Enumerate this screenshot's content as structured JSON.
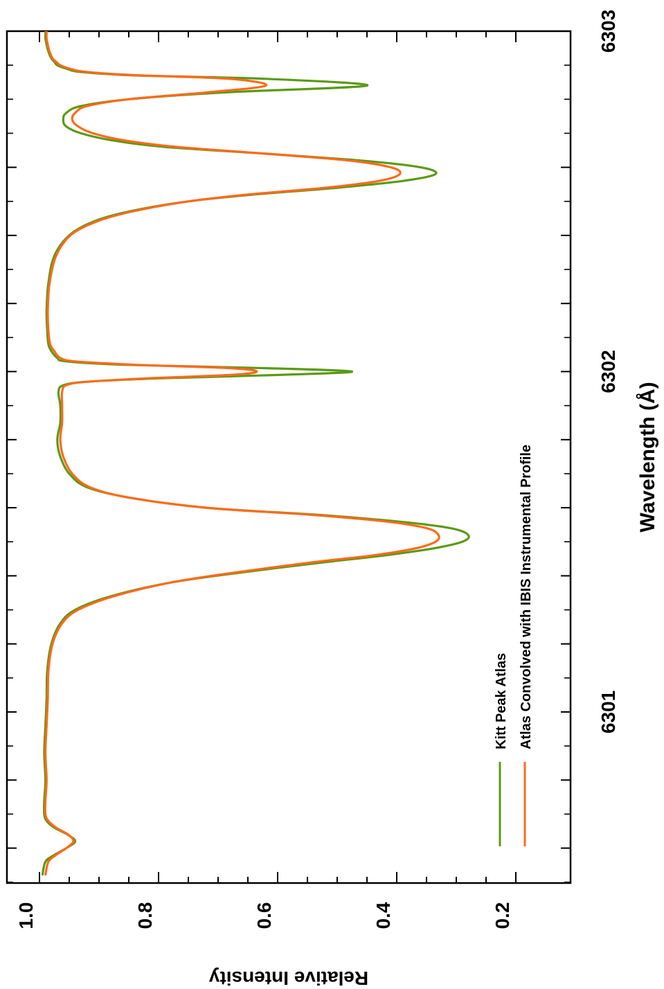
{
  "chart_data": {
    "type": "line",
    "orientation": "rotated 90 degrees clockwise (wavelength runs top-to-bottom on screen as 6303 at top, 6301 at bottom)",
    "xlabel": "Wavelength (Å)",
    "ylabel": "Relative Intensity",
    "xlim": [
      6300.5,
      6303.0
    ],
    "ylim": [
      0.1,
      1.01
    ],
    "x_major_ticks": [
      6301,
      6302,
      6303
    ],
    "x_tick_labels": [
      "6301",
      "6302",
      "6303"
    ],
    "y_ticks": [
      1.0,
      0.8,
      0.6,
      0.4,
      0.2
    ],
    "y_tick_labels": [
      "1.0",
      "0.8",
      "0.6",
      "0.4",
      "0.2"
    ],
    "legend": {
      "placement": "bottom-left"
    },
    "series": [
      {
        "name": "Kitt Peak Atlas",
        "color": "#5a9a14",
        "x": [
          6300.52,
          6300.56,
          6300.58,
          6300.6,
          6300.62,
          6300.64,
          6300.66,
          6300.68,
          6300.7,
          6300.74,
          6300.8,
          6300.88,
          6300.96,
          6301.04,
          6301.12,
          6301.2,
          6301.26,
          6301.3,
          6301.34,
          6301.38,
          6301.41,
          6301.44,
          6301.46,
          6301.48,
          6301.5,
          6301.52,
          6301.54,
          6301.56,
          6301.58,
          6301.6,
          6301.63,
          6301.66,
          6301.7,
          6301.75,
          6301.8,
          6301.85,
          6301.9,
          6301.94,
          6301.96,
          6301.97,
          6301.98,
          6301.99,
          6302.0,
          6302.01,
          6302.02,
          6302.03,
          6302.04,
          6302.06,
          6302.08,
          6302.12,
          6302.18,
          6302.26,
          6302.34,
          6302.4,
          6302.44,
          6302.47,
          6302.5,
          6302.52,
          6302.54,
          6302.56,
          6302.58,
          6302.6,
          6302.62,
          6302.64,
          6302.66,
          6302.68,
          6302.7,
          6302.72,
          6302.74,
          6302.76,
          6302.78,
          6302.8,
          6302.82,
          6302.84,
          6302.86,
          6302.87,
          6302.88,
          6302.89,
          6302.9,
          6302.91,
          6302.92,
          6302.94,
          6302.96,
          6302.98,
          6303.0
        ],
        "y": [
          0.995,
          0.99,
          0.975,
          0.955,
          0.94,
          0.953,
          0.975,
          0.988,
          0.992,
          0.992,
          0.99,
          0.992,
          0.99,
          0.988,
          0.987,
          0.98,
          0.965,
          0.94,
          0.88,
          0.78,
          0.66,
          0.52,
          0.42,
          0.34,
          0.29,
          0.28,
          0.31,
          0.4,
          0.54,
          0.72,
          0.85,
          0.92,
          0.95,
          0.965,
          0.97,
          0.965,
          0.965,
          0.968,
          0.96,
          0.92,
          0.8,
          0.6,
          0.475,
          0.62,
          0.86,
          0.955,
          0.97,
          0.98,
          0.985,
          0.987,
          0.988,
          0.985,
          0.975,
          0.95,
          0.91,
          0.85,
          0.75,
          0.64,
          0.5,
          0.39,
          0.335,
          0.36,
          0.46,
          0.62,
          0.79,
          0.88,
          0.93,
          0.955,
          0.96,
          0.955,
          0.93,
          0.85,
          0.69,
          0.45,
          0.62,
          0.84,
          0.93,
          0.955,
          0.97,
          0.975,
          0.98,
          0.985,
          0.988,
          0.99,
          0.99
        ]
      },
      {
        "name": "Atlas Convolved with IBIS Instrumental Profile",
        "color": "#ff6a1a",
        "x": [
          6300.52,
          6300.56,
          6300.58,
          6300.6,
          6300.62,
          6300.64,
          6300.66,
          6300.68,
          6300.7,
          6300.74,
          6300.8,
          6300.88,
          6300.96,
          6301.04,
          6301.12,
          6301.2,
          6301.26,
          6301.3,
          6301.34,
          6301.38,
          6301.41,
          6301.44,
          6301.46,
          6301.48,
          6301.5,
          6301.52,
          6301.54,
          6301.56,
          6301.58,
          6301.6,
          6301.63,
          6301.66,
          6301.7,
          6301.75,
          6301.8,
          6301.85,
          6301.9,
          6301.94,
          6301.96,
          6301.97,
          6301.98,
          6301.99,
          6302.0,
          6302.01,
          6302.02,
          6302.03,
          6302.04,
          6302.06,
          6302.08,
          6302.12,
          6302.18,
          6302.26,
          6302.34,
          6302.4,
          6302.44,
          6302.47,
          6302.5,
          6302.52,
          6302.54,
          6302.56,
          6302.58,
          6302.6,
          6302.62,
          6302.64,
          6302.66,
          6302.68,
          6302.7,
          6302.72,
          6302.74,
          6302.76,
          6302.78,
          6302.8,
          6302.82,
          6302.84,
          6302.86,
          6302.87,
          6302.88,
          6302.89,
          6302.9,
          6302.91,
          6302.92,
          6302.94,
          6302.96,
          6302.98,
          6303.0
        ],
        "y": [
          0.99,
          0.985,
          0.972,
          0.955,
          0.943,
          0.952,
          0.972,
          0.985,
          0.99,
          0.99,
          0.988,
          0.99,
          0.988,
          0.986,
          0.985,
          0.978,
          0.962,
          0.935,
          0.875,
          0.78,
          0.67,
          0.54,
          0.44,
          0.37,
          0.335,
          0.33,
          0.35,
          0.42,
          0.55,
          0.72,
          0.85,
          0.915,
          0.945,
          0.96,
          0.965,
          0.962,
          0.962,
          0.962,
          0.955,
          0.92,
          0.82,
          0.68,
          0.635,
          0.68,
          0.84,
          0.94,
          0.965,
          0.975,
          0.982,
          0.985,
          0.986,
          0.983,
          0.972,
          0.948,
          0.905,
          0.845,
          0.75,
          0.65,
          0.52,
          0.43,
          0.395,
          0.41,
          0.48,
          0.62,
          0.77,
          0.86,
          0.91,
          0.935,
          0.945,
          0.94,
          0.92,
          0.85,
          0.72,
          0.62,
          0.68,
          0.83,
          0.92,
          0.95,
          0.965,
          0.972,
          0.978,
          0.983,
          0.986,
          0.988,
          0.988
        ]
      }
    ]
  }
}
